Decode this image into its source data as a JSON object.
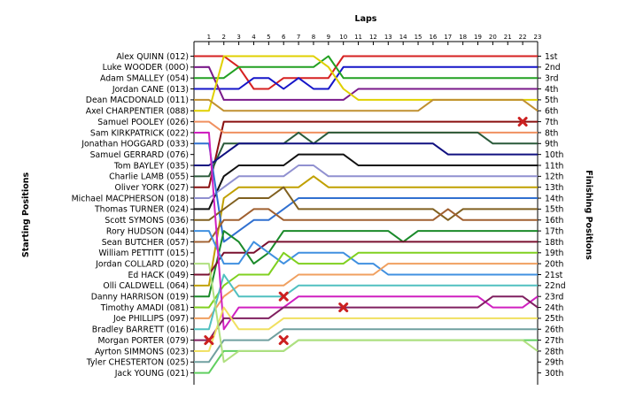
{
  "chart_data": {
    "type": "line",
    "title": "Laps",
    "xlabel": "Laps",
    "ylabel_left": "Starting Positions",
    "ylabel_right": "Finishing Positions",
    "laps": [
      1,
      2,
      3,
      4,
      5,
      6,
      7,
      8,
      9,
      10,
      11,
      12,
      13,
      14,
      15,
      16,
      17,
      18,
      19,
      20,
      21,
      22,
      23
    ],
    "starting_grid": [
      "Alex QUINN (012)",
      "Luke WOODER (00O)",
      "Adam SMALLEY (054)",
      "Jordan CANE (013)",
      "Dean MACDONALD (011)",
      "Axel CHARPENTIER (088)",
      "Samuel POOLEY (026)",
      "Sam KIRKPATRICK (022)",
      "Jonathan HOGGARD (033)",
      "Samuel GERRARD (076)",
      "Tom BAYLEY (035)",
      "Charlie LAMB (055)",
      "Oliver YORK (027)",
      "Michael MACPHERSON (018)",
      "Thomas TURNER (024)",
      "Scott SYMONS (036)",
      "Rory HUDSON (044)",
      "Sean BUTCHER (057)",
      "William PETTITT (015)",
      "Jordan COLLARD (020)",
      "Ed HACK (049)",
      "Olli CALDWELL (064)",
      "Danny HARRISON (019)",
      "Timothy AMADI (081)",
      "Joe PHILLIPS (097)",
      "Bradley BARRETT (016)",
      "Morgan PORTER (079)",
      "Ayrton SIMMONS (023)",
      "Tyler CHESTERTON (025)",
      "Jack YOUNG (021)"
    ],
    "finishing_labels": [
      "1st",
      "2nd",
      "3rd",
      "4th",
      "5th",
      "6th",
      "7th",
      "8th",
      "9th",
      "10th",
      "11th",
      "12th",
      "13th",
      "14th",
      "15th",
      "16th",
      "17th",
      "18th",
      "19th",
      "20th",
      "21st",
      "22nd",
      "23rd",
      "24th",
      "25th",
      "26th",
      "27th",
      "28th",
      "29th",
      "30th"
    ],
    "series": [
      {
        "color": "#d62020",
        "positions": [
          1,
          1,
          2,
          4,
          4,
          3,
          3,
          3,
          3,
          1,
          1,
          1,
          1,
          1,
          1,
          1,
          1,
          1,
          1,
          1,
          1,
          1,
          1
        ]
      },
      {
        "color": "#1515c8",
        "positions": [
          4,
          4,
          4,
          3,
          3,
          4,
          3,
          4,
          4,
          2,
          2,
          2,
          2,
          2,
          2,
          2,
          2,
          2,
          2,
          2,
          2,
          2,
          2
        ]
      },
      {
        "color": "#22a022",
        "positions": [
          3,
          3,
          2,
          2,
          2,
          2,
          2,
          2,
          1,
          3,
          3,
          3,
          3,
          3,
          3,
          3,
          3,
          3,
          3,
          3,
          3,
          3,
          3
        ]
      },
      {
        "color": "#7a1a8a",
        "positions": [
          2,
          5,
          5,
          5,
          5,
          5,
          5,
          5,
          5,
          5,
          4,
          4,
          4,
          4,
          4,
          4,
          4,
          4,
          4,
          4,
          4,
          4,
          4
        ]
      },
      {
        "color": "#e0d000",
        "positions": [
          6,
          1,
          1,
          1,
          1,
          1,
          1,
          1,
          2,
          4,
          5,
          5,
          5,
          5,
          5,
          5,
          5,
          5,
          5,
          5,
          5,
          5,
          5
        ]
      },
      {
        "color": "#c09030",
        "positions": [
          5,
          6,
          6,
          6,
          6,
          6,
          6,
          6,
          6,
          6,
          6,
          6,
          6,
          6,
          6,
          5,
          5,
          5,
          5,
          5,
          5,
          5,
          6
        ]
      },
      {
        "color": "#8a1010",
        "positions": [
          13,
          7,
          7,
          7,
          7,
          7,
          7,
          7,
          7,
          7,
          7,
          7,
          7,
          7,
          7,
          7,
          7,
          7,
          7,
          7,
          7,
          7,
          7
        ]
      },
      {
        "color": "#f09060",
        "positions": [
          7,
          8,
          8,
          8,
          8,
          8,
          8,
          8,
          8,
          8,
          8,
          8,
          8,
          8,
          8,
          8,
          8,
          8,
          8,
          8,
          8,
          8,
          8
        ]
      },
      {
        "color": "#2a5a3a",
        "positions": [
          12,
          9,
          9,
          9,
          9,
          9,
          8,
          9,
          8,
          8,
          8,
          8,
          8,
          8,
          8,
          8,
          8,
          8,
          8,
          9,
          9,
          9,
          9
        ]
      },
      {
        "color": "#101080",
        "positions": [
          11,
          10,
          9,
          9,
          9,
          9,
          9,
          9,
          9,
          9,
          9,
          9,
          9,
          9,
          9,
          9,
          10,
          10,
          10,
          10,
          10,
          10,
          10
        ]
      },
      {
        "color": "#111111",
        "positions": [
          15,
          12,
          11,
          11,
          11,
          11,
          10,
          10,
          10,
          10,
          11,
          11,
          11,
          11,
          11,
          11,
          11,
          11,
          11,
          11,
          11,
          11,
          11
        ]
      },
      {
        "color": "#9090d0",
        "positions": [
          14,
          13,
          12,
          12,
          12,
          12,
          11,
          11,
          12,
          12,
          12,
          12,
          12,
          12,
          12,
          12,
          12,
          12,
          12,
          12,
          12,
          12,
          12
        ]
      },
      {
        "color": "#c0a000",
        "positions": [
          22,
          14,
          13,
          13,
          13,
          13,
          13,
          12,
          13,
          13,
          13,
          13,
          13,
          13,
          13,
          13,
          13,
          13,
          13,
          13,
          13,
          13,
          13
        ]
      },
      {
        "color": "#3070d0",
        "positions": [
          9,
          18,
          17,
          16,
          16,
          15,
          14,
          14,
          14,
          14,
          14,
          14,
          14,
          14,
          14,
          14,
          14,
          14,
          14,
          14,
          14,
          14,
          14
        ]
      },
      {
        "color": "#806020",
        "positions": [
          16,
          15,
          14,
          14,
          14,
          13,
          15,
          15,
          15,
          15,
          15,
          15,
          15,
          15,
          15,
          15,
          16,
          15,
          15,
          15,
          15,
          15,
          15
        ]
      },
      {
        "color": "#a06030",
        "positions": [
          18,
          16,
          16,
          15,
          15,
          16,
          16,
          16,
          16,
          16,
          16,
          16,
          16,
          16,
          16,
          16,
          15,
          16,
          16,
          16,
          16,
          16,
          16
        ]
      },
      {
        "color": "#1a8a2a",
        "positions": [
          23,
          17,
          18,
          20,
          19,
          17,
          17,
          17,
          17,
          17,
          17,
          17,
          17,
          18,
          17,
          17,
          17,
          17,
          17,
          17,
          17,
          17,
          17
        ]
      },
      {
        "color": "#7a1030",
        "positions": [
          21,
          19,
          19,
          19,
          18,
          18,
          18,
          18,
          18,
          18,
          18,
          18,
          18,
          18,
          18,
          18,
          18,
          18,
          18,
          18,
          18,
          18,
          18
        ]
      },
      {
        "color": "#4090e0",
        "positions": [
          17,
          20,
          20,
          18,
          19,
          20,
          19,
          19,
          19,
          19,
          20,
          20,
          21,
          21,
          21,
          21,
          21,
          21,
          21,
          21,
          21,
          21,
          21
        ]
      },
      {
        "color": "#80d020",
        "positions": [
          24,
          22,
          21,
          21,
          21,
          19,
          20,
          20,
          20,
          20,
          19,
          19,
          19,
          19,
          19,
          19,
          19,
          19,
          19,
          19,
          19,
          19,
          19
        ]
      },
      {
        "color": "#f0a060",
        "positions": [
          25,
          23,
          22,
          22,
          22,
          22,
          21,
          21,
          21,
          21,
          21,
          21,
          20,
          20,
          20,
          20,
          20,
          20,
          20,
          20,
          20,
          20,
          20
        ]
      },
      {
        "color": "#50c0c0",
        "positions": [
          26,
          21,
          23,
          23,
          23,
          23,
          22,
          22,
          22,
          22,
          22,
          22,
          22,
          22,
          22,
          22,
          22,
          22,
          22,
          22,
          22,
          22,
          22
        ]
      },
      {
        "color": "#d020c0",
        "positions": [
          8,
          26,
          24,
          24,
          24,
          24,
          23,
          23,
          23,
          23,
          23,
          23,
          23,
          23,
          23,
          23,
          23,
          23,
          23,
          24,
          24,
          24,
          23
        ]
      },
      {
        "color": "#802060",
        "positions": [
          27,
          25,
          25,
          25,
          25,
          24,
          24,
          24,
          24,
          24,
          24,
          24,
          24,
          24,
          24,
          24,
          24,
          24,
          24,
          23,
          23,
          23,
          24
        ]
      },
      {
        "color": "#f0e060",
        "positions": [
          28,
          24,
          26,
          26,
          26,
          25,
          25,
          25,
          25,
          25,
          25,
          25,
          25,
          25,
          25,
          25,
          25,
          25,
          25,
          25,
          25,
          25,
          25
        ]
      },
      {
        "color": "#70a0a0",
        "positions": [
          29,
          27,
          27,
          27,
          27,
          26,
          26,
          26,
          26,
          26,
          26,
          26,
          26,
          26,
          26,
          26,
          26,
          26,
          26,
          26,
          26,
          26,
          26
        ]
      },
      {
        "color": "#60d060",
        "positions": [
          30,
          28,
          28,
          28,
          28,
          28,
          27,
          27,
          27,
          27,
          27,
          27,
          27,
          27,
          27,
          27,
          27,
          27,
          27,
          27,
          27,
          27,
          27
        ]
      },
      {
        "color": "#b0e080",
        "positions": [
          20,
          29,
          28,
          28,
          28,
          28,
          27,
          27,
          27,
          27,
          27,
          27,
          27,
          27,
          27,
          27,
          27,
          27,
          27,
          27,
          27,
          27,
          28
        ]
      }
    ],
    "retirements": [
      {
        "lap": 1,
        "position": 27
      },
      {
        "lap": 6,
        "position": 23
      },
      {
        "lap": 6,
        "position": 27
      },
      {
        "lap": 10,
        "position": 24
      },
      {
        "lap": 22,
        "position": 7
      }
    ],
    "grid": false,
    "retirement_marker_color": "#cc2020"
  }
}
